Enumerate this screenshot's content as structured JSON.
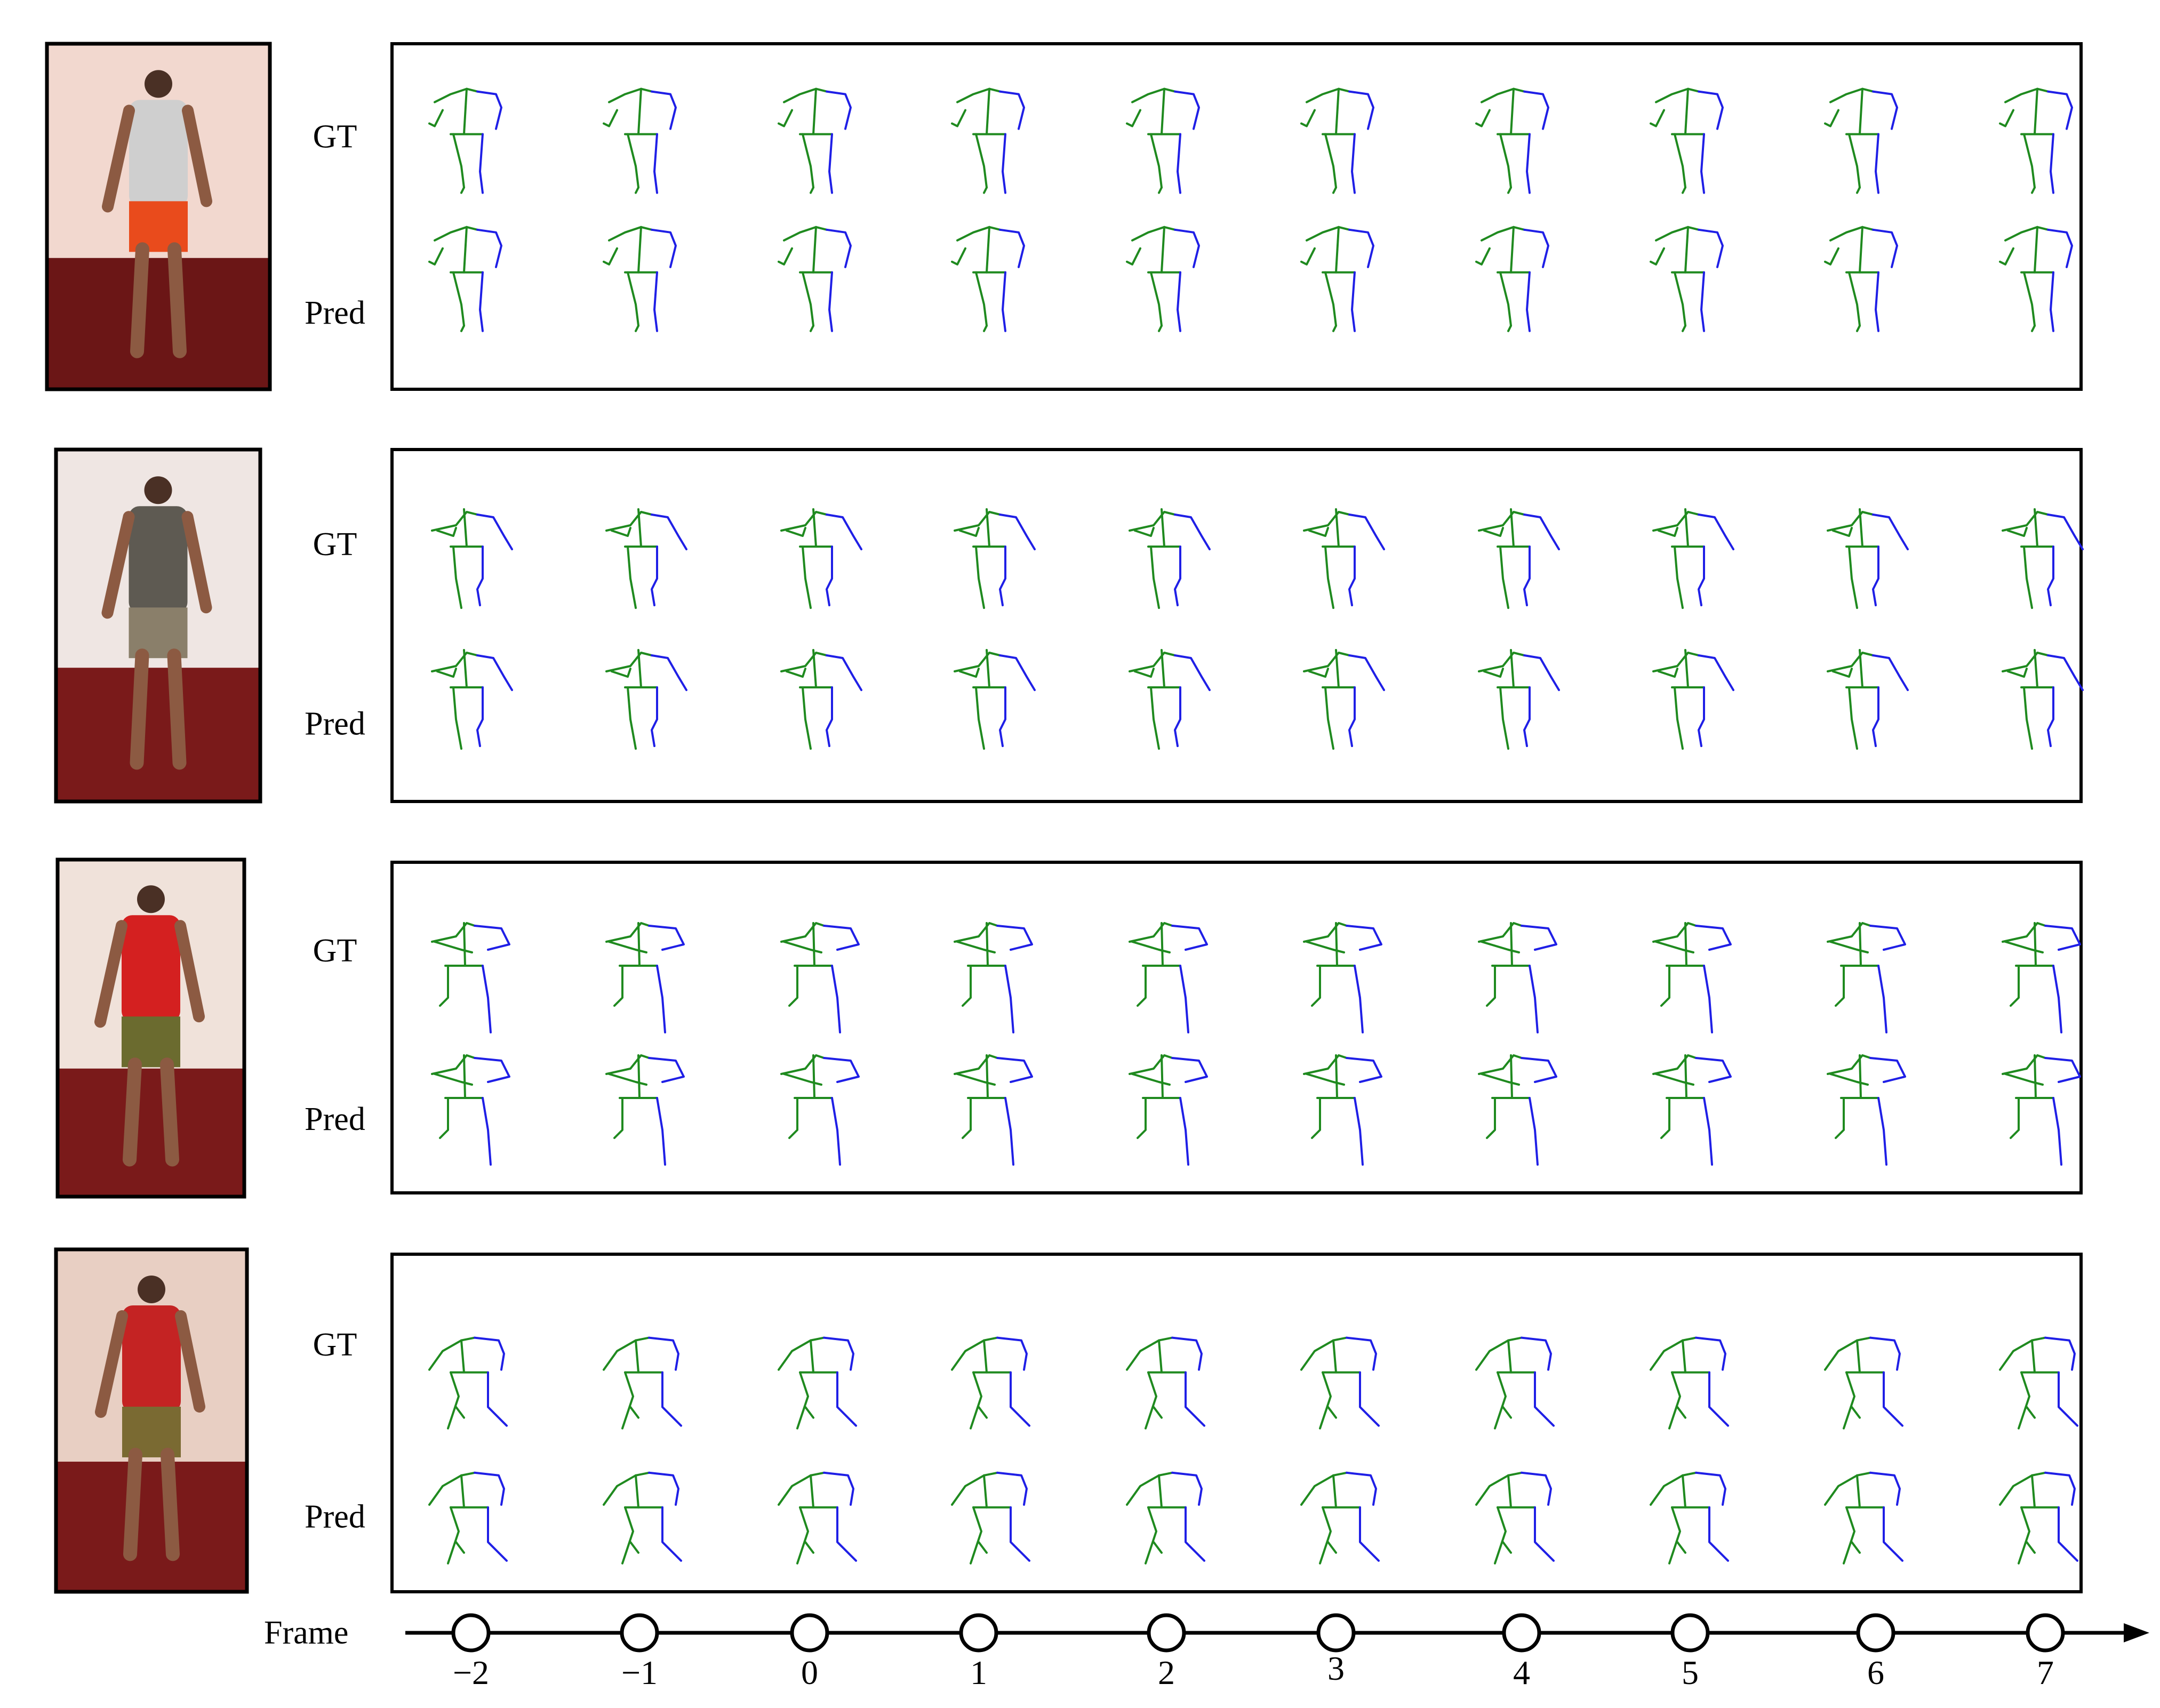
{
  "figure": {
    "row_labels": {
      "gt": "GT",
      "pred": "Pred"
    },
    "timeline": {
      "label": "Frame",
      "frames": [
        "−2",
        "−1",
        "0",
        "1",
        "2",
        "3",
        "4",
        "5",
        "6",
        "7"
      ]
    },
    "colors": {
      "left_side": "#1f8a1f",
      "right_side": "#1f1fe6",
      "panel_border": "#000000",
      "photo_frame": "#000000"
    },
    "sequences": [
      {
        "pose": "standing-back-arm-out",
        "photo_palette": [
          "#f2d8cf",
          "#6b1616",
          "#cfcfcf",
          "#e94b1c"
        ]
      },
      {
        "pose": "standing-front-arm-bent",
        "photo_palette": [
          "#efe6e3",
          "#7a1a1a",
          "#5e5a52",
          "#8a7f6a"
        ]
      },
      {
        "pose": "standing-back-hands-on-hips",
        "photo_palette": [
          "#f0e2da",
          "#7a1a1a",
          "#d42020",
          "#6b6b2f"
        ]
      },
      {
        "pose": "bending-forward",
        "photo_palette": [
          "#e8cfc3",
          "#7a1a1a",
          "#c42323",
          "#7a6a32"
        ]
      }
    ]
  }
}
